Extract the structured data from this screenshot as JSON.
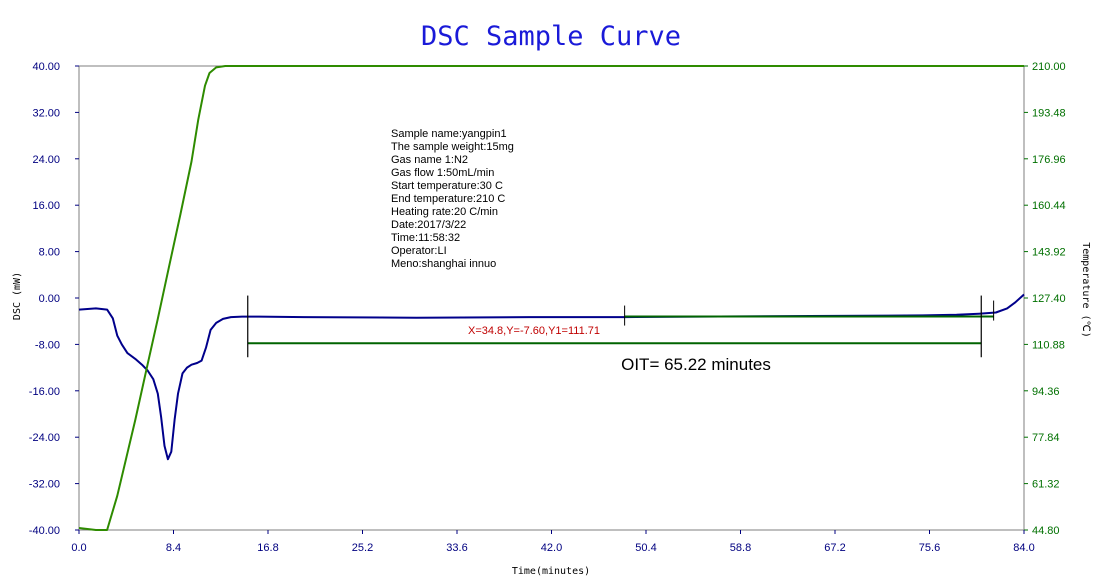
{
  "colors": {
    "dsc_series": "#00008b",
    "temperature_series": "#2e8b00",
    "axis_left": "#000080",
    "axis_right": "#007000",
    "cursor_text": "#c00000",
    "oit_marker": "#006400"
  },
  "chart_data": {
    "type": "line",
    "title": "DSC Sample Curve",
    "xlabel": "Time(minutes)",
    "ylabel": "DSC (mW)",
    "ylabel_right": "Temperature (℃)",
    "xlim": [
      0.0,
      84.0
    ],
    "ylim": [
      -40.0,
      40.0
    ],
    "ylim_right": [
      44.8,
      210.0
    ],
    "grid": false,
    "x_ticks": [
      "0.0",
      "8.4",
      "16.8",
      "25.2",
      "33.6",
      "42.0",
      "50.4",
      "58.8",
      "67.2",
      "75.6",
      "84.0"
    ],
    "y_ticks_left": [
      "40.00",
      "32.00",
      "24.00",
      "16.00",
      "8.00",
      "0.00",
      "-8.00",
      "-16.00",
      "-24.00",
      "-32.00",
      "-40.00"
    ],
    "y_ticks_right": [
      "210.00",
      "193.48",
      "176.96",
      "160.44",
      "143.92",
      "127.40",
      "110.88",
      "94.36",
      "77.84",
      "61.32",
      "44.80"
    ],
    "series": [
      {
        "axis": "left",
        "x": [
          0.0,
          1.5,
          2.5,
          3.0,
          3.4,
          3.8,
          4.3,
          5.0,
          5.6,
          6.1,
          6.6,
          7.0,
          7.3,
          7.6,
          7.9,
          8.2,
          8.5,
          8.8,
          9.2,
          9.6,
          10.0,
          10.5,
          10.9,
          11.3,
          11.7,
          12.2,
          12.8,
          13.5,
          14.5,
          16.0,
          20.0,
          30.0,
          40.0,
          48.5,
          55.0,
          65.0,
          75.0,
          78.0,
          80.0,
          81.5,
          82.5,
          83.2,
          84.0
        ],
        "y": [
          -2.0,
          -1.8,
          -2.0,
          -3.5,
          -6.5,
          -8.0,
          -9.5,
          -10.5,
          -11.5,
          -12.5,
          -14.0,
          -16.5,
          -20.5,
          -25.5,
          -27.8,
          -26.5,
          -21.0,
          -16.5,
          -13.0,
          -12.0,
          -11.5,
          -11.2,
          -10.8,
          -8.5,
          -5.5,
          -4.3,
          -3.6,
          -3.3,
          -3.2,
          -3.2,
          -3.3,
          -3.4,
          -3.3,
          -3.3,
          -3.2,
          -3.1,
          -3.0,
          -2.9,
          -2.7,
          -2.5,
          -1.8,
          -0.8,
          0.6
        ]
      },
      {
        "axis": "right",
        "x": [
          0.0,
          1.5,
          2.5,
          3.4,
          5.0,
          6.0,
          7.0,
          8.0,
          9.0,
          10.0,
          10.6,
          11.2,
          11.6,
          12.2,
          13.0,
          20.0,
          40.0,
          60.0,
          84.0
        ],
        "y": [
          45.5,
          44.8,
          44.8,
          57.0,
          84.0,
          102.0,
          120.0,
          138.5,
          157.0,
          176.0,
          191.0,
          203.0,
          207.5,
          209.5,
          210.0,
          210.0,
          210.0,
          210.0,
          210.0
        ]
      }
    ],
    "annotations": {
      "info_lines": [
        "Sample name:yangpin1",
        "The sample weight:15mg",
        "Gas name 1:N2",
        "Gas flow 1:50mL/min",
        "Start temperature:30 C",
        "End temperature:210 C",
        "Heating rate:20 C/min",
        "Date:2017/3/22",
        "Time:11:58:32",
        "Operator:LI",
        "Meno:shanghai innuo"
      ],
      "cursor_readout": "X=34.8,Y=-7.60,Y1=111.71",
      "oit_label": "OIT= 65.22 minutes",
      "oit_start": 15.0,
      "oit_end": 80.2,
      "oit_baseline_y": -3.2,
      "bar_level": -7.8,
      "mid_marker_x": 48.5,
      "end_marker_x": 81.3
    }
  }
}
